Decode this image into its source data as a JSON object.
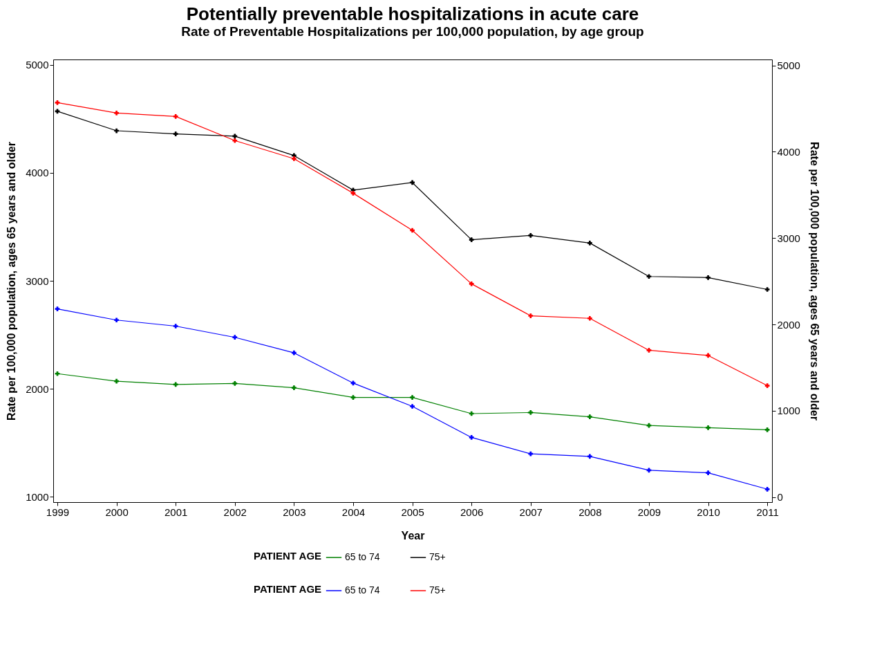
{
  "chart_data": {
    "type": "line",
    "title": "Potentially preventable hospitalizations in acute care",
    "subtitle": "Rate of Preventable Hospitalizations per 100,000 population, by age group",
    "xlabel": "Year",
    "ylabel": "Rate per 100,000 population, ages 65 years and older",
    "y2label": "Rate per 100,000 population, ages 65 years and older",
    "legend_title": "PATIENT AGE",
    "x": [
      1999,
      2000,
      2001,
      2002,
      2003,
      2004,
      2005,
      2006,
      2007,
      2008,
      2009,
      2010,
      2011
    ],
    "series": [
      {
        "name": "65 to 74",
        "color": "#008000",
        "values": [
          2140,
          2070,
          2040,
          2050,
          2010,
          1920,
          1920,
          1770,
          1780,
          1740,
          1660,
          1640,
          1620
        ]
      },
      {
        "name": "75+",
        "color": "#000000",
        "values": [
          4570,
          4390,
          4360,
          4340,
          4160,
          3840,
          3910,
          3380,
          3420,
          3350,
          3040,
          3030,
          2920
        ]
      },
      {
        "name": "65 to 74",
        "color": "#0000ff",
        "axis": "y2",
        "values": [
          2180,
          2050,
          1980,
          1850,
          1670,
          1320,
          1050,
          690,
          500,
          470,
          310,
          280,
          90
        ]
      },
      {
        "name": "75+",
        "color": "#ff0000",
        "axis": "y2",
        "values": [
          4570,
          4450,
          4410,
          4130,
          3920,
          3520,
          3090,
          2470,
          2100,
          2070,
          1700,
          1640,
          1290
        ]
      }
    ],
    "xlim": [
      1998.93,
      2011.08
    ],
    "xticks": [
      1999,
      2000,
      2001,
      2002,
      2003,
      2004,
      2005,
      2006,
      2007,
      2008,
      2009,
      2010,
      2011
    ],
    "ylim": [
      950,
      5050
    ],
    "yticks": [
      1000,
      2000,
      3000,
      4000,
      5000
    ],
    "y2lim": [
      -60,
      5070
    ],
    "y2ticks": [
      0,
      1000,
      2000,
      3000,
      4000,
      5000
    ],
    "grid": false,
    "legend": "bottom",
    "marker": "cross",
    "line_style": "solid"
  }
}
